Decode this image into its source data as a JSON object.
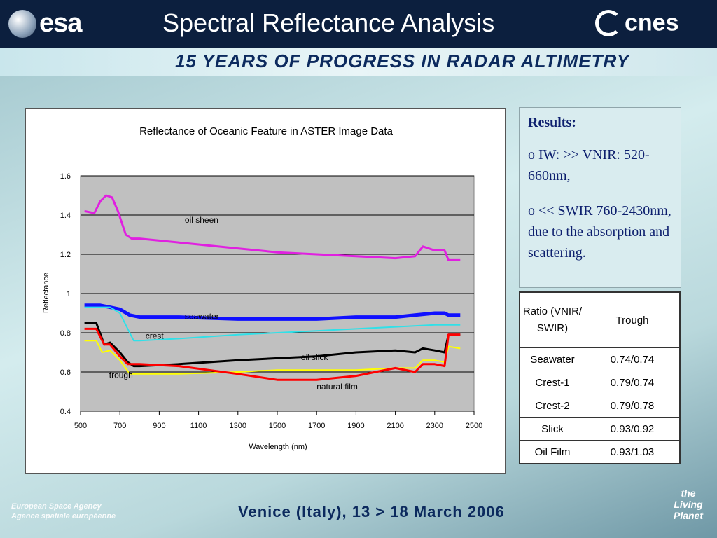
{
  "header": {
    "esa_logo_text": "esa",
    "title": "Spectral Reflectance Analysis",
    "cnes_logo_text": "cnes",
    "banner": "15 YEARS OF PROGRESS IN RADAR ALTIMETRY"
  },
  "results": {
    "heading": "Results:",
    "line1": "o IW: >> VNIR: 520-660nm,",
    "line2": "o << SWIR 760-2430nm, due to the absorption and scattering."
  },
  "ratio_table": {
    "headers": [
      "Ratio (VNIR/ SWIR)",
      "Trough"
    ],
    "rows": [
      [
        "Seawater",
        "0.74/0.74"
      ],
      [
        "Crest-1",
        "0.79/0.74"
      ],
      [
        "Crest-2",
        "0.79/0.78"
      ],
      [
        "Slick",
        "0.93/0.92"
      ],
      [
        "Oil Film",
        "0.93/1.03"
      ]
    ]
  },
  "footer": {
    "agency_line1": "European Space Agency",
    "agency_line2": "Agence spatiale européenne",
    "event": "Venice (Italy), 13 > 18 March 2006",
    "slogan1": "the",
    "slogan2": "Living Planet"
  },
  "colors": {
    "plot_bg": "#c0c0c0",
    "oil_sheen": "#e020e0",
    "seawater": "#1010ff",
    "crest": "#30e0e8",
    "oil_slick": "#000000",
    "trough": "#ffff00",
    "natural_film": "#ff0000"
  },
  "chart_data": {
    "type": "line",
    "title": "Reflectance of Oceanic Feature in ASTER Image Data",
    "xlabel": "Wavelength (nm)",
    "ylabel": "Reflectance",
    "xlim": [
      500,
      2500
    ],
    "ylim": [
      0.4,
      1.6
    ],
    "xticks": [
      "500",
      "700",
      "900",
      "1100",
      "1300",
      "1500",
      "1700",
      "1900",
      "2100",
      "2300",
      "2500"
    ],
    "yticks": [
      "0.4",
      "0.6",
      "0.8",
      "1",
      "1.2",
      "1.4",
      "1.6"
    ],
    "grid": true,
    "legend": "none",
    "annotations": [
      {
        "text": "oil sheen",
        "x": 1030,
        "y": 1.36
      },
      {
        "text": "seawater",
        "x": 1030,
        "y": 0.87
      },
      {
        "text": "crest",
        "x": 830,
        "y": 0.77
      },
      {
        "text": "oil slick",
        "x": 1620,
        "y": 0.66
      },
      {
        "text": "trough",
        "x": 645,
        "y": 0.57
      },
      {
        "text": "natural film",
        "x": 1700,
        "y": 0.51
      }
    ],
    "series": [
      {
        "name": "oil sheen",
        "color_key": "oil_sheen",
        "width": 3,
        "x": [
          520,
          570,
          600,
          630,
          660,
          690,
          730,
          760,
          800,
          900,
          1000,
          1100,
          1300,
          1500,
          1700,
          1900,
          2100,
          2200,
          2240,
          2300,
          2350,
          2370,
          2430
        ],
        "y": [
          1.42,
          1.41,
          1.47,
          1.5,
          1.49,
          1.42,
          1.3,
          1.28,
          1.28,
          1.27,
          1.26,
          1.25,
          1.23,
          1.21,
          1.2,
          1.19,
          1.18,
          1.19,
          1.24,
          1.22,
          1.22,
          1.17,
          1.17
        ]
      },
      {
        "name": "seawater",
        "color_key": "seawater",
        "width": 5,
        "x": [
          520,
          600,
          650,
          700,
          750,
          800,
          1000,
          1300,
          1500,
          1700,
          1900,
          2100,
          2200,
          2300,
          2350,
          2370,
          2430
        ],
        "y": [
          0.94,
          0.94,
          0.93,
          0.92,
          0.89,
          0.88,
          0.88,
          0.87,
          0.87,
          0.87,
          0.88,
          0.88,
          0.89,
          0.9,
          0.9,
          0.89,
          0.89
        ]
      },
      {
        "name": "crest",
        "color_key": "crest",
        "width": 2,
        "x": [
          520,
          650,
          700,
          740,
          770,
          800,
          1000,
          1300,
          1500,
          1700,
          1900,
          2100,
          2300,
          2350,
          2430
        ],
        "y": [
          0.93,
          0.93,
          0.9,
          0.82,
          0.76,
          0.76,
          0.77,
          0.79,
          0.8,
          0.81,
          0.82,
          0.83,
          0.84,
          0.84,
          0.84
        ]
      },
      {
        "name": "oil slick",
        "color_key": "oil_slick",
        "width": 3,
        "x": [
          520,
          580,
          620,
          650,
          700,
          740,
          770,
          800,
          1000,
          1300,
          1500,
          1700,
          1900,
          2100,
          2200,
          2240,
          2300,
          2350,
          2370,
          2430
        ],
        "y": [
          0.85,
          0.85,
          0.74,
          0.75,
          0.7,
          0.65,
          0.63,
          0.63,
          0.64,
          0.66,
          0.67,
          0.68,
          0.7,
          0.71,
          0.7,
          0.72,
          0.71,
          0.7,
          0.79,
          0.79
        ]
      },
      {
        "name": "trough",
        "color_key": "trough",
        "width": 2,
        "x": [
          520,
          580,
          610,
          650,
          700,
          750,
          800,
          1000,
          1300,
          1500,
          1700,
          1900,
          2100,
          2200,
          2240,
          2300,
          2350,
          2370,
          2430
        ],
        "y": [
          0.76,
          0.76,
          0.7,
          0.71,
          0.66,
          0.59,
          0.59,
          0.59,
          0.6,
          0.61,
          0.61,
          0.61,
          0.62,
          0.62,
          0.66,
          0.66,
          0.65,
          0.73,
          0.72
        ]
      },
      {
        "name": "natural film",
        "color_key": "natural_film",
        "width": 3,
        "x": [
          520,
          580,
          620,
          650,
          700,
          740,
          770,
          800,
          1000,
          1300,
          1500,
          1700,
          1900,
          2100,
          2200,
          2240,
          2300,
          2350,
          2370,
          2430
        ],
        "y": [
          0.82,
          0.82,
          0.74,
          0.74,
          0.68,
          0.64,
          0.64,
          0.64,
          0.63,
          0.59,
          0.56,
          0.56,
          0.58,
          0.62,
          0.6,
          0.64,
          0.64,
          0.63,
          0.79,
          0.79
        ]
      }
    ]
  }
}
